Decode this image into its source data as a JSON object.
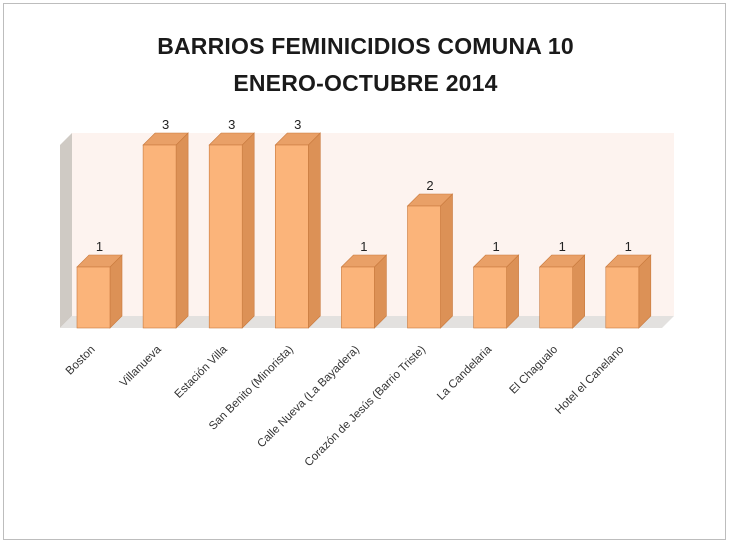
{
  "chart_data": {
    "type": "bar",
    "title": "BARRIOS FEMINICIDIOS COMUNA 10",
    "subtitle": "ENERO-OCTUBRE 2014",
    "categories": [
      "Boston",
      "Villanueva",
      "Estación Villa",
      "San Benito (Minorista)",
      "Calle Nueva (La Bayadera)",
      "Corazón de Jesús (Barrio Triste)",
      "La Candelaria",
      "El Chagualo",
      "Hotel el Canelano"
    ],
    "values": [
      1,
      3,
      3,
      3,
      1,
      2,
      1,
      1,
      1
    ],
    "data_labels": [
      "1",
      "3",
      "3",
      "3",
      "1",
      "2",
      "1",
      "1",
      "1"
    ],
    "ylim": [
      0,
      3
    ],
    "xlabel": "",
    "ylabel": "",
    "grid": false,
    "legend": "none",
    "style": "3d-column"
  },
  "colors": {
    "bar_front": "#fbb47a",
    "bar_side": "#dc9156",
    "bar_top": "#e9a067",
    "bar_edge": "#c97a3e",
    "back_wall": "#fdf3ef",
    "side_wall": "#cfcac4",
    "floor": "#e3e1df"
  }
}
